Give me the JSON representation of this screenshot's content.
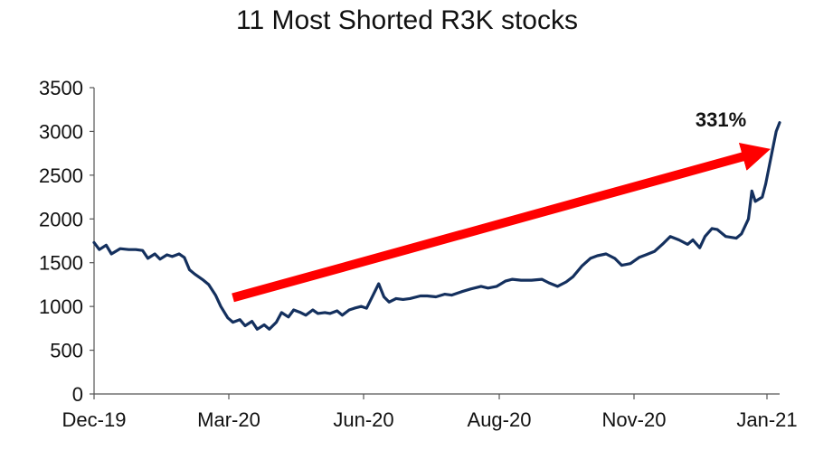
{
  "chart_data": {
    "type": "line",
    "title": "11 Most Shorted R3K stocks",
    "xlabel": "",
    "ylabel": "",
    "ylim": [
      0,
      3500
    ],
    "y_ticks": [
      0,
      500,
      1000,
      1500,
      2000,
      2500,
      3000,
      3500
    ],
    "x_ticks": [
      "Dec-19",
      "Mar-20",
      "Jun-20",
      "Aug-20",
      "Nov-20",
      "Jan-21"
    ],
    "xlim": [
      "2019-12-31",
      "2021-01-29"
    ],
    "grid": false,
    "legend": "none",
    "line_color": "#14305e",
    "arrow_color": "#ff0000",
    "annotations": [
      {
        "text": "331%",
        "arrow_from": [
          "2020-03-20",
          1100
        ],
        "arrow_to": [
          "2021-01-24",
          2800
        ]
      }
    ],
    "series": [
      {
        "values": [
          [
            "2019-12-31",
            1730
          ],
          [
            "2020-01-03",
            1650
          ],
          [
            "2020-01-07",
            1700
          ],
          [
            "2020-01-10",
            1600
          ],
          [
            "2020-01-15",
            1660
          ],
          [
            "2020-01-20",
            1650
          ],
          [
            "2020-01-24",
            1650
          ],
          [
            "2020-01-28",
            1640
          ],
          [
            "2020-01-31",
            1550
          ],
          [
            "2020-02-04",
            1600
          ],
          [
            "2020-02-07",
            1540
          ],
          [
            "2020-02-11",
            1590
          ],
          [
            "2020-02-14",
            1570
          ],
          [
            "2020-02-18",
            1600
          ],
          [
            "2020-02-21",
            1560
          ],
          [
            "2020-02-24",
            1420
          ],
          [
            "2020-02-27",
            1370
          ],
          [
            "2020-03-03",
            1300
          ],
          [
            "2020-03-06",
            1250
          ],
          [
            "2020-03-10",
            1130
          ],
          [
            "2020-03-13",
            1000
          ],
          [
            "2020-03-17",
            870
          ],
          [
            "2020-03-20",
            820
          ],
          [
            "2020-03-24",
            850
          ],
          [
            "2020-03-27",
            780
          ],
          [
            "2020-03-31",
            830
          ],
          [
            "2020-04-03",
            740
          ],
          [
            "2020-04-07",
            790
          ],
          [
            "2020-04-10",
            740
          ],
          [
            "2020-04-14",
            820
          ],
          [
            "2020-04-17",
            930
          ],
          [
            "2020-04-21",
            880
          ],
          [
            "2020-04-24",
            960
          ],
          [
            "2020-04-28",
            930
          ],
          [
            "2020-05-01",
            900
          ],
          [
            "2020-05-05",
            960
          ],
          [
            "2020-05-08",
            920
          ],
          [
            "2020-05-12",
            930
          ],
          [
            "2020-05-15",
            920
          ],
          [
            "2020-05-19",
            950
          ],
          [
            "2020-05-22",
            900
          ],
          [
            "2020-05-26",
            960
          ],
          [
            "2020-05-29",
            980
          ],
          [
            "2020-06-02",
            1000
          ],
          [
            "2020-06-05",
            980
          ],
          [
            "2020-06-09",
            1140
          ],
          [
            "2020-06-12",
            1260
          ],
          [
            "2020-06-15",
            1110
          ],
          [
            "2020-06-18",
            1050
          ],
          [
            "2020-06-22",
            1090
          ],
          [
            "2020-06-26",
            1080
          ],
          [
            "2020-06-30",
            1090
          ],
          [
            "2020-07-06",
            1120
          ],
          [
            "2020-07-10",
            1120
          ],
          [
            "2020-07-15",
            1110
          ],
          [
            "2020-07-20",
            1140
          ],
          [
            "2020-07-24",
            1130
          ],
          [
            "2020-07-30",
            1170
          ],
          [
            "2020-08-04",
            1200
          ],
          [
            "2020-08-10",
            1230
          ],
          [
            "2020-08-14",
            1210
          ],
          [
            "2020-08-19",
            1230
          ],
          [
            "2020-08-24",
            1290
          ],
          [
            "2020-08-28",
            1310
          ],
          [
            "2020-09-02",
            1300
          ],
          [
            "2020-09-08",
            1300
          ],
          [
            "2020-09-14",
            1310
          ],
          [
            "2020-09-18",
            1270
          ],
          [
            "2020-09-23",
            1230
          ],
          [
            "2020-09-28",
            1280
          ],
          [
            "2020-10-02",
            1340
          ],
          [
            "2020-10-07",
            1460
          ],
          [
            "2020-10-12",
            1550
          ],
          [
            "2020-10-16",
            1580
          ],
          [
            "2020-10-21",
            1600
          ],
          [
            "2020-10-26",
            1550
          ],
          [
            "2020-10-30",
            1470
          ],
          [
            "2020-11-04",
            1490
          ],
          [
            "2020-11-09",
            1560
          ],
          [
            "2020-11-13",
            1590
          ],
          [
            "2020-11-18",
            1630
          ],
          [
            "2020-11-23",
            1720
          ],
          [
            "2020-11-27",
            1800
          ],
          [
            "2020-12-02",
            1760
          ],
          [
            "2020-12-07",
            1710
          ],
          [
            "2020-12-10",
            1760
          ],
          [
            "2020-12-14",
            1670
          ],
          [
            "2020-12-17",
            1800
          ],
          [
            "2020-12-21",
            1890
          ],
          [
            "2020-12-24",
            1880
          ],
          [
            "2020-12-29",
            1800
          ],
          [
            "2021-01-04",
            1780
          ],
          [
            "2021-01-07",
            1830
          ],
          [
            "2021-01-11",
            2000
          ],
          [
            "2021-01-13",
            2320
          ],
          [
            "2021-01-15",
            2200
          ],
          [
            "2021-01-19",
            2250
          ],
          [
            "2021-01-21",
            2400
          ],
          [
            "2021-01-25",
            2800
          ],
          [
            "2021-01-27",
            3000
          ],
          [
            "2021-01-29",
            3100
          ]
        ]
      }
    ]
  }
}
